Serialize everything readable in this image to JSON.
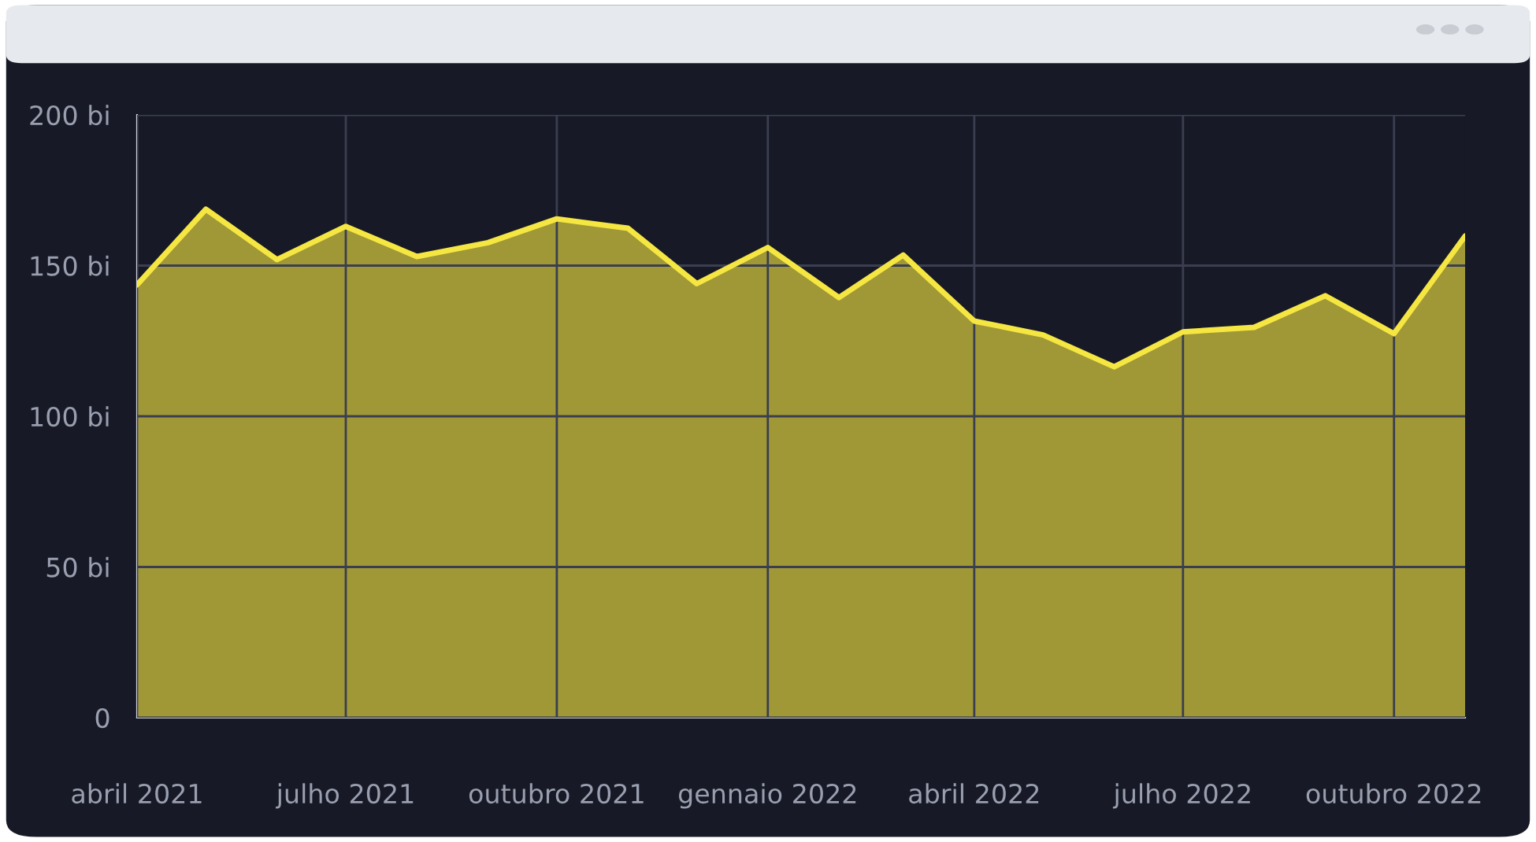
{
  "chart_data": {
    "type": "area",
    "x": [
      "2021-04",
      "2021-05",
      "2021-06",
      "2021-07",
      "2021-08",
      "2021-09",
      "2021-10",
      "2021-11",
      "2021-12",
      "2022-01",
      "2022-02",
      "2022-03",
      "2022-04",
      "2022-05",
      "2022-06",
      "2022-07",
      "2022-08",
      "2022-09",
      "2022-10",
      "2022-11"
    ],
    "series": [
      {
        "color": "#f5e642",
        "values": [
          143.6,
          168.7,
          152,
          163,
          153,
          157.6,
          165.5,
          162.4,
          144,
          156,
          139.4,
          153.5,
          131.6,
          127,
          116.4,
          128,
          129.5,
          140,
          127.4,
          159.8
        ]
      }
    ],
    "xlim": [
      "2021-04",
      "2022-11"
    ],
    "xticks": [
      {
        "value": "2021-04",
        "label": "abril 2021"
      },
      {
        "value": "2021-07",
        "label": "julho 2021"
      },
      {
        "value": "2021-10",
        "label": "outubro 2021"
      },
      {
        "value": "2022-01",
        "label": "gennaio 2022"
      },
      {
        "value": "2022-04",
        "label": "abril 2022"
      },
      {
        "value": "2022-07",
        "label": "julho 2022"
      },
      {
        "value": "2022-10",
        "label": "outubro 2022"
      }
    ],
    "ylim": [
      0,
      200
    ],
    "yticks": [
      0,
      {
        "value": 50,
        "label": "50 bi"
      },
      {
        "value": 100,
        "label": "100 bi"
      },
      {
        "value": 150,
        "label": "150 bi"
      },
      {
        "value": 200,
        "label": "200 bi"
      }
    ],
    "grid": true
  }
}
